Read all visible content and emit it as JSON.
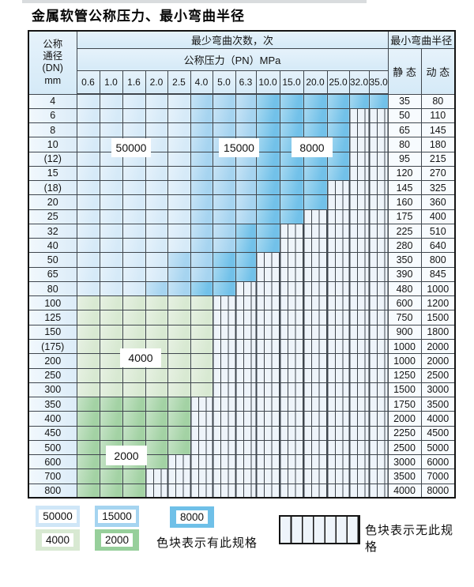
{
  "title": "金属软管公称压力、最小弯曲半径",
  "table": {
    "corner_header_lines": [
      "公称",
      "通径",
      "(DN)",
      "mm"
    ],
    "bend_cycles_header": "最少弯曲次数，次",
    "pressure_header": "公称压力（PN）MPa",
    "radius_header": "最小弯曲半径",
    "static_header": "静 态",
    "dynamic_header": "动 态",
    "pressures": [
      "0.6",
      "1.0",
      "1.6",
      "2.0",
      "2.5",
      "4.0",
      "5.0",
      "6.3",
      "10.0",
      "15.0",
      "20.0",
      "25.0",
      "32.0",
      "35.0"
    ],
    "rows": [
      {
        "dn": "4",
        "static": "35",
        "dynamic": "80",
        "colored": 14,
        "zone": "blue"
      },
      {
        "dn": "6",
        "static": "50",
        "dynamic": "110",
        "colored": 12,
        "zone": "blue"
      },
      {
        "dn": "8",
        "static": "65",
        "dynamic": "145",
        "colored": 12,
        "zone": "blue"
      },
      {
        "dn": "10",
        "static": "80",
        "dynamic": "180",
        "colored": 12,
        "zone": "blue"
      },
      {
        "dn": "(12)",
        "static": "95",
        "dynamic": "215",
        "colored": 12,
        "zone": "blue"
      },
      {
        "dn": "15",
        "static": "120",
        "dynamic": "270",
        "colored": 12,
        "zone": "blue"
      },
      {
        "dn": "(18)",
        "static": "145",
        "dynamic": "325",
        "colored": 11,
        "zone": "blue"
      },
      {
        "dn": "20",
        "static": "160",
        "dynamic": "360",
        "colored": 11,
        "zone": "blue"
      },
      {
        "dn": "25",
        "static": "175",
        "dynamic": "400",
        "colored": 10,
        "zone": "blue"
      },
      {
        "dn": "32",
        "static": "225",
        "dynamic": "510",
        "colored": 9,
        "zone": "blue"
      },
      {
        "dn": "40",
        "static": "280",
        "dynamic": "640",
        "colored": 9,
        "zone": "blue"
      },
      {
        "dn": "50",
        "static": "350",
        "dynamic": "800",
        "colored": 8,
        "zone": "blue"
      },
      {
        "dn": "65",
        "static": "390",
        "dynamic": "845",
        "colored": 8,
        "zone": "blue"
      },
      {
        "dn": "80",
        "static": "480",
        "dynamic": "1000",
        "colored": 7,
        "zone": "blue"
      },
      {
        "dn": "100",
        "static": "600",
        "dynamic": "1200",
        "colored": 6,
        "zone": "green-light"
      },
      {
        "dn": "125",
        "static": "750",
        "dynamic": "1500",
        "colored": 6,
        "zone": "green-light"
      },
      {
        "dn": "150",
        "static": "900",
        "dynamic": "1800",
        "colored": 6,
        "zone": "green-light"
      },
      {
        "dn": "(175)",
        "static": "1000",
        "dynamic": "2000",
        "colored": 6,
        "zone": "green-light"
      },
      {
        "dn": "200",
        "static": "1000",
        "dynamic": "2000",
        "colored": 6,
        "zone": "green-light"
      },
      {
        "dn": "250",
        "static": "1250",
        "dynamic": "2500",
        "colored": 6,
        "zone": "green-light"
      },
      {
        "dn": "300",
        "static": "1500",
        "dynamic": "3000",
        "colored": 6,
        "zone": "green-light"
      },
      {
        "dn": "350",
        "static": "1750",
        "dynamic": "3500",
        "colored": 5,
        "zone": "green-mid"
      },
      {
        "dn": "400",
        "static": "2000",
        "dynamic": "4000",
        "colored": 5,
        "zone": "green-mid"
      },
      {
        "dn": "450",
        "static": "2250",
        "dynamic": "4500",
        "colored": 5,
        "zone": "green-mid"
      },
      {
        "dn": "500",
        "static": "2500",
        "dynamic": "5000",
        "colored": 5,
        "zone": "green-mid"
      },
      {
        "dn": "600",
        "static": "3000",
        "dynamic": "6000",
        "colored": 4,
        "zone": "green-mid"
      },
      {
        "dn": "700",
        "static": "3500",
        "dynamic": "7000",
        "colored": 3,
        "zone": "green-mid"
      },
      {
        "dn": "800",
        "static": "4000",
        "dynamic": "8000",
        "colored": 3,
        "zone": "green-mid"
      }
    ]
  },
  "zone_labels": [
    "50000",
    "15000",
    "8000",
    "4000",
    "2000"
  ],
  "legend": {
    "swatches": [
      {
        "label": "50000",
        "color": "#cfe6f7"
      },
      {
        "label": "15000",
        "color": "#a5d4f0"
      },
      {
        "label": "8000",
        "color": "#6fc0e8"
      },
      {
        "label": "4000",
        "color": "#d8e9d2"
      },
      {
        "label": "2000",
        "color": "#97cf9b"
      }
    ],
    "has_spec_text": "色块表示有此规格",
    "no_spec_text": "色块表示无此规格"
  },
  "colors": {
    "blue_50000": "#d6eaf8",
    "blue_15000": "#a6d4f0",
    "blue_8000": "#72c1e9",
    "green_4000": "#d8e9d2",
    "green_2000": "#a3d2a4",
    "hatch_bg": "#eef4fa",
    "grid_line": "#3f464d"
  }
}
